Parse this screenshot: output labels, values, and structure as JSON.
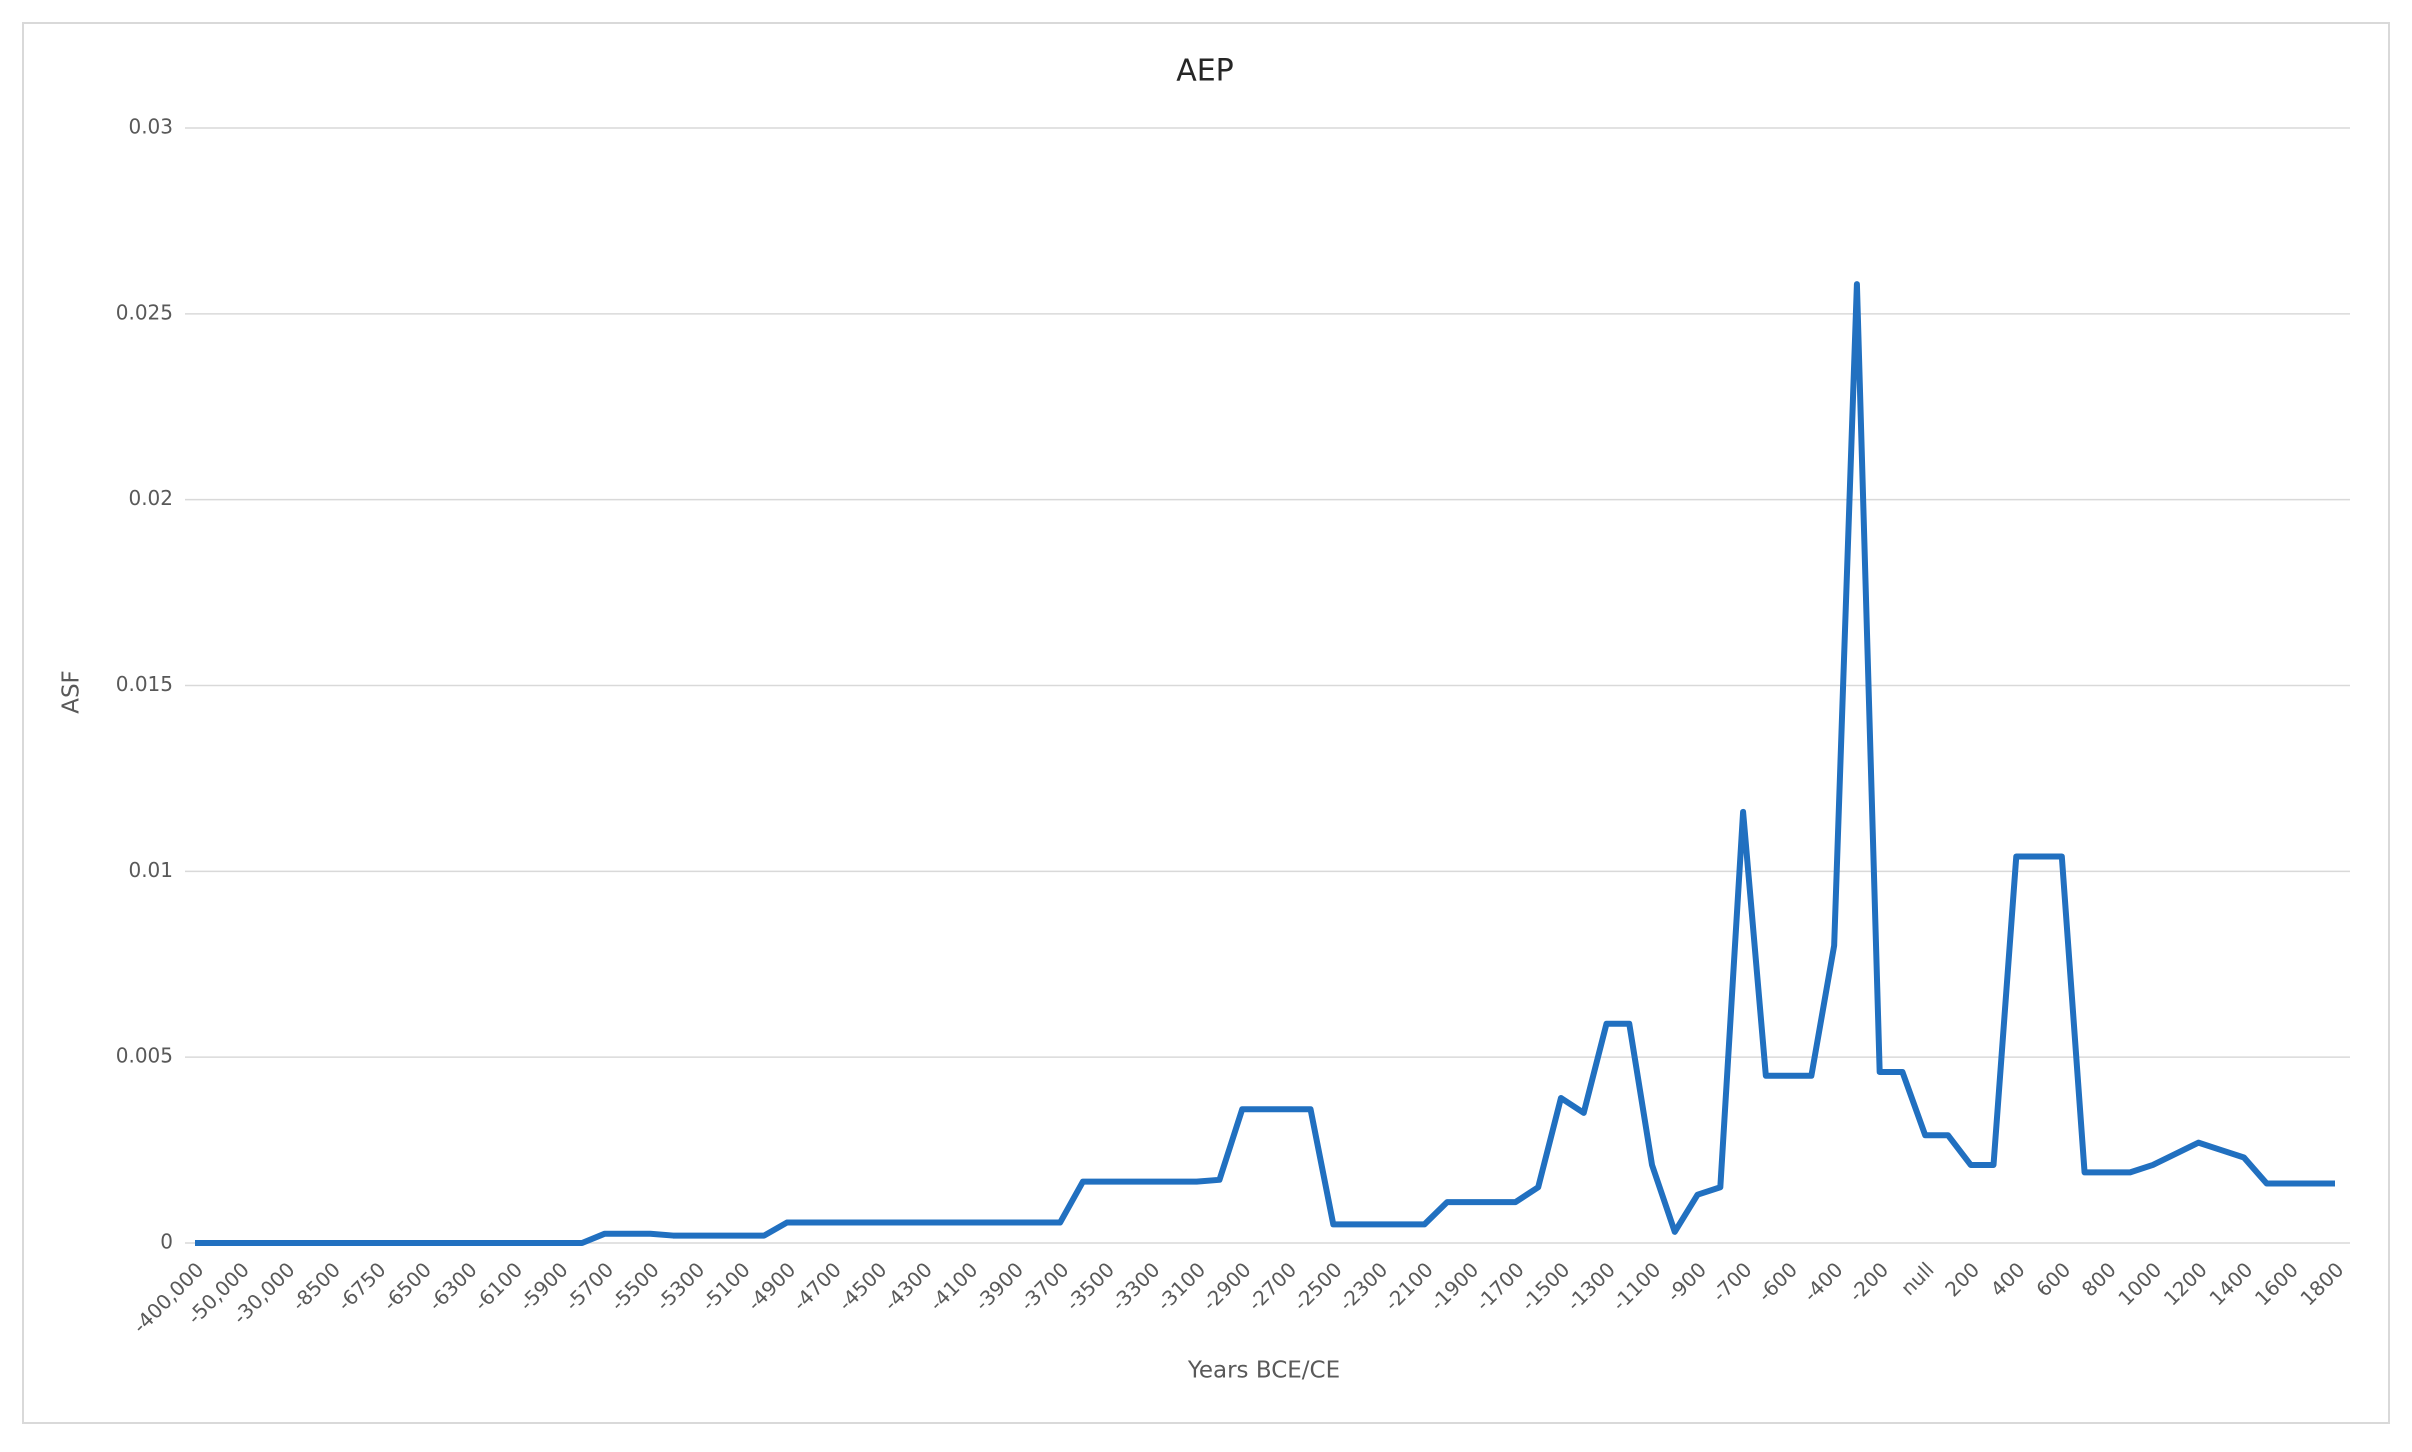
{
  "chart_data": {
    "type": "line",
    "title": "AEP",
    "x_label": "Years BCE/CE",
    "y_label": "ASF",
    "categories": [
      "-400,000",
      null,
      "-50,000",
      null,
      "-30,000",
      null,
      "-8500",
      null,
      "-6750",
      null,
      "-6500",
      null,
      "-6300",
      null,
      "-6100",
      null,
      "-5900",
      null,
      "-5700",
      null,
      "-5500",
      null,
      "-5300",
      null,
      "-5100",
      null,
      "-4900",
      null,
      "-4700",
      null,
      "-4500",
      null,
      "-4300",
      null,
      "-4100",
      null,
      "-3900",
      null,
      "-3700",
      null,
      "-3500",
      null,
      "-3300",
      null,
      "-3100",
      null,
      "-2900",
      null,
      "-2700",
      null,
      "-2500",
      null,
      "-2300",
      null,
      "-2100",
      null,
      "-1900",
      null,
      "-1700",
      null,
      "-1500",
      null,
      "-1300",
      null,
      "-1100",
      null,
      "-900",
      null,
      "-700",
      null,
      "-600",
      null,
      "-400",
      null,
      "-200",
      null,
      "null",
      null,
      "200",
      null,
      "400",
      null,
      "600",
      null,
      "800",
      null,
      "1000",
      null,
      "1200",
      null,
      "1400",
      null,
      "1600",
      null,
      "1800"
    ],
    "series": [
      {
        "name": "AEP",
        "color": "#2170c0",
        "values": [
          0,
          0,
          0,
          0,
          0,
          0,
          0,
          0,
          0,
          0,
          0,
          0,
          0,
          0,
          0,
          0,
          0,
          0,
          0.00025,
          0.00025,
          0.00025,
          0.0002,
          0.0002,
          0.0002,
          0.0002,
          0.0002,
          0.00055,
          0.00055,
          0.00055,
          0.00055,
          0.00055,
          0.00055,
          0.00055,
          0.00055,
          0.00055,
          0.00055,
          0.00055,
          0.00055,
          0.00055,
          0.00165,
          0.00165,
          0.00165,
          0.00165,
          0.00165,
          0.00165,
          0.0017,
          0.0036,
          0.0036,
          0.0036,
          0.0036,
          0.0005,
          0.0005,
          0.0005,
          0.0005,
          0.0005,
          0.0011,
          0.0011,
          0.0011,
          0.0011,
          0.0015,
          0.0039,
          0.0035,
          0.0059,
          0.0059,
          0.0021,
          0.0003,
          0.0013,
          0.0015,
          0.0116,
          0.0045,
          0.0045,
          0.0045,
          0.008,
          0.0258,
          0.0046,
          0.0046,
          0.0029,
          0.0029,
          0.0021,
          0.0021,
          0.0104,
          0.0104,
          0.0104,
          0.0019,
          0.0019,
          0.0019,
          0.0021,
          0.0024,
          0.0027,
          0.0025,
          0.0023,
          0.0016,
          0.0016,
          0.0016,
          0.0016
        ]
      }
    ],
    "ylim": [
      0,
      0.03
    ],
    "yticks": [
      0,
      0.005,
      0.01,
      0.015,
      0.02,
      0.025,
      0.03
    ],
    "grid": true
  }
}
